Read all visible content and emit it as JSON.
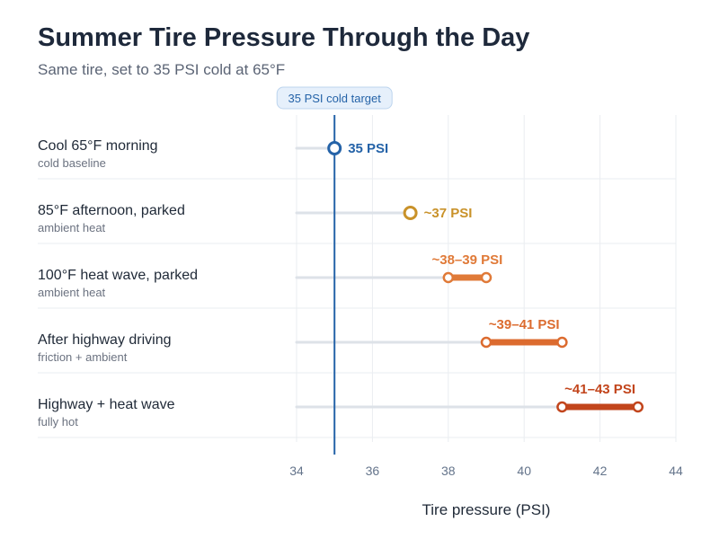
{
  "header": {
    "title": "Summer Tire Pressure Through the Day",
    "subtitle": "Same tire, set to 35 PSI cold at 65°F"
  },
  "colors": {
    "reference": "#2563a8",
    "track": "#dde2e8",
    "grid": "#eaedf1"
  },
  "chart_data": {
    "type": "dumbbell",
    "title": "Summer Tire Pressure Through the Day",
    "subtitle": "Same tire, set to 35 PSI cold at 65°F",
    "xlabel": "Tire pressure (PSI)",
    "xlim": [
      34,
      44
    ],
    "xticks": [
      34,
      36,
      38,
      40,
      42,
      44
    ],
    "grid": "vertical",
    "reference_line": {
      "value": 35,
      "label": "35 PSI cold target"
    },
    "rows": [
      {
        "label": "Cool 65°F morning",
        "sublabel": "cold baseline",
        "low": 35,
        "high": 35,
        "value_label": "35 PSI",
        "color": "#2563a8"
      },
      {
        "label": "85°F afternoon, parked",
        "sublabel": "ambient heat",
        "low": 37,
        "high": 37,
        "value_label": "~37 PSI",
        "color": "#c9922a"
      },
      {
        "label": "100°F heat wave, parked",
        "sublabel": "ambient heat",
        "low": 38,
        "high": 39,
        "value_label": "~38–39 PSI",
        "color": "#e07a38"
      },
      {
        "label": "After highway driving",
        "sublabel": "friction + ambient",
        "low": 39,
        "high": 41,
        "value_label": "~39–41 PSI",
        "color": "#dc6b2f"
      },
      {
        "label": "Highway + heat wave",
        "sublabel": "fully hot",
        "low": 41,
        "high": 43,
        "value_label": "~41–43 PSI",
        "color": "#c2451c"
      }
    ]
  }
}
